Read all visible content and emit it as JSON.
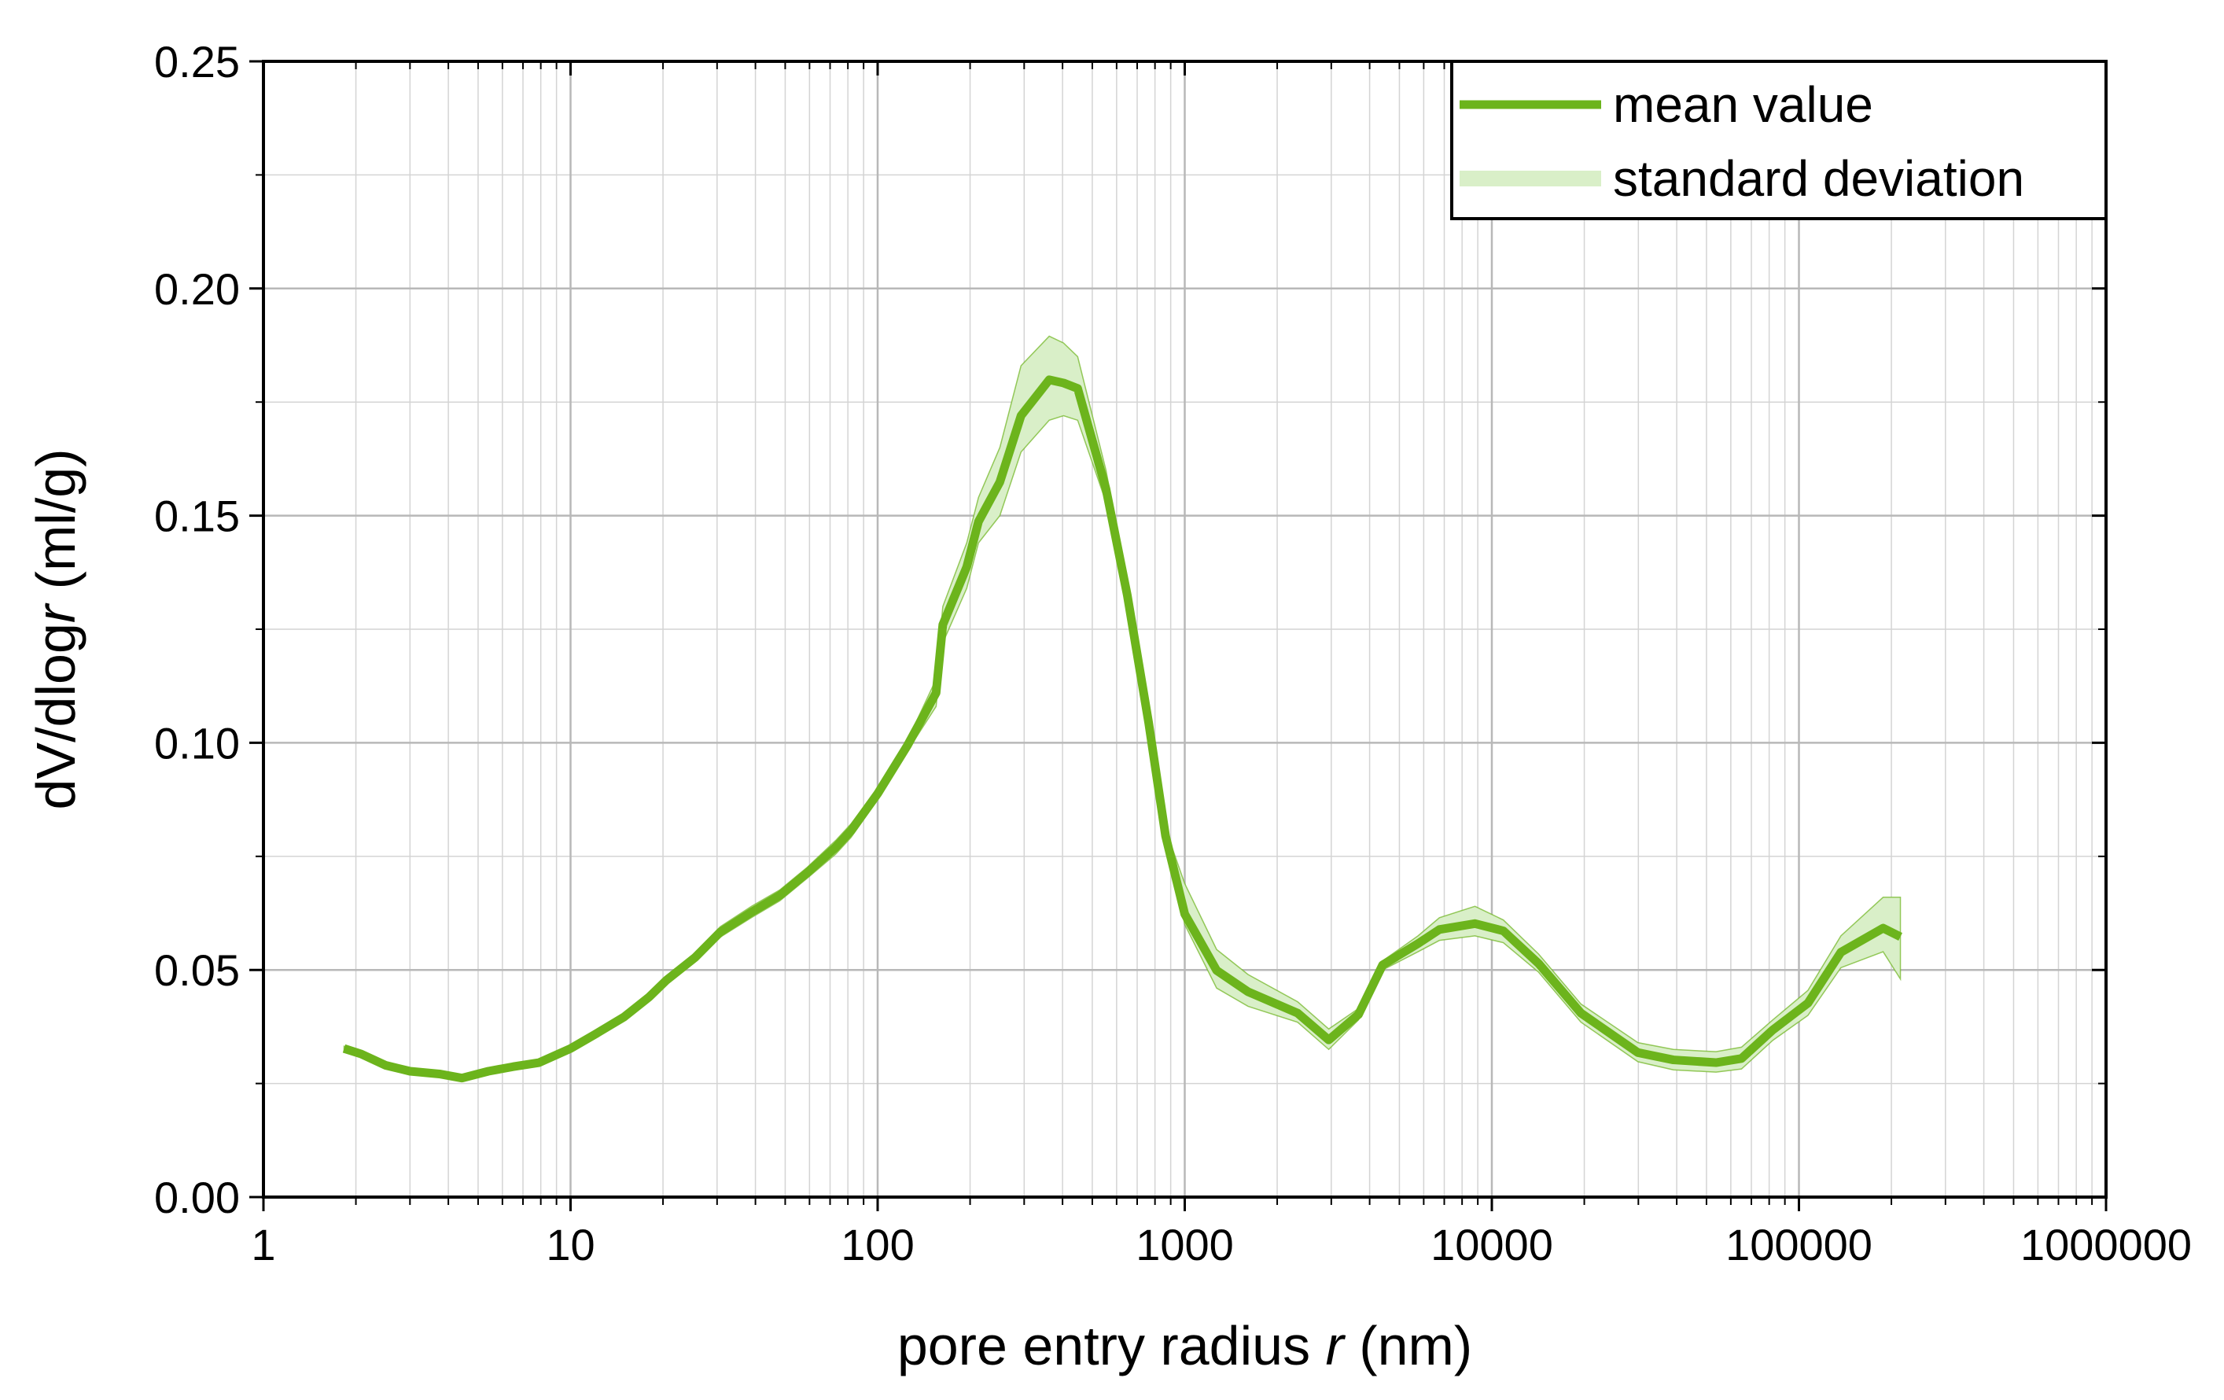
{
  "chart_data": {
    "type": "line",
    "xlabel": [
      "pore entry radius ",
      "r",
      " (nm)"
    ],
    "ylabel": [
      "dV/dlog",
      "r",
      " (ml/g)"
    ],
    "xscale": "log",
    "grid": true,
    "legend": "upper right",
    "xlim": [
      1,
      1000000
    ],
    "xticks": [
      1,
      10,
      100,
      1000,
      10000,
      100000,
      1000000
    ],
    "ylim": [
      0,
      0.25
    ],
    "yticks": [
      {
        "value": 0,
        "label": "0.00"
      },
      0.05,
      {
        "value": 0.1,
        "label": "0.10"
      },
      0.15,
      {
        "value": 0.2,
        "label": "0.20"
      },
      0.25
    ],
    "x": [
      1.83,
      2.08,
      2.5,
      3.0,
      3.74,
      4.43,
      5.4,
      6.5,
      7.9,
      10,
      12,
      14.9,
      18,
      20.5,
      25.4,
      30.7,
      38.8,
      48,
      59,
      73,
      82,
      100,
      125,
      155,
      163,
      195,
      213,
      250,
      293,
      362,
      403,
      448,
      554,
      650,
      763,
      866,
      1000,
      1270,
      1607,
      2330,
      2944,
      3680,
      4410,
      5750,
      6750,
      8810,
      10900,
      14200,
      19500,
      29900,
      39000,
      53700,
      65000,
      82200,
      107000,
      137000,
      188000,
      214000
    ],
    "series": [
      {
        "name": "mean value",
        "color": "#6cb41c",
        "values": [
          0.0327,
          0.0315,
          0.029,
          0.0277,
          0.0271,
          0.0262,
          0.0277,
          0.0287,
          0.0296,
          0.0327,
          0.0358,
          0.0396,
          0.044,
          0.0477,
          0.0527,
          0.0583,
          0.0627,
          0.0664,
          0.0714,
          0.077,
          0.0807,
          0.0888,
          0.0994,
          0.111,
          0.126,
          0.1387,
          0.1487,
          0.1574,
          0.172,
          0.1799,
          0.1792,
          0.178,
          0.1559,
          0.1325,
          0.1044,
          0.0795,
          0.0623,
          0.0499,
          0.0452,
          0.0405,
          0.0346,
          0.0402,
          0.0511,
          0.0558,
          0.0589,
          0.0602,
          0.0586,
          0.0514,
          0.0405,
          0.0318,
          0.0302,
          0.0296,
          0.0305,
          0.0368,
          0.0427,
          0.0539,
          0.0592,
          0.0573
        ]
      },
      {
        "name": "standard deviation",
        "color": "#d9efc8",
        "upper": [
          0.0332,
          0.032,
          0.0295,
          0.0282,
          0.0276,
          0.0267,
          0.0282,
          0.0292,
          0.0302,
          0.0335,
          0.0365,
          0.0402,
          0.0447,
          0.0485,
          0.0537,
          0.0595,
          0.064,
          0.0676,
          0.0726,
          0.0785,
          0.0822,
          0.09,
          0.1005,
          0.114,
          0.13,
          0.144,
          0.154,
          0.165,
          0.183,
          0.1895,
          0.188,
          0.185,
          0.16,
          0.135,
          0.106,
          0.081,
          0.069,
          0.0545,
          0.049,
          0.043,
          0.037,
          0.0415,
          0.052,
          0.0575,
          0.0615,
          0.064,
          0.061,
          0.0535,
          0.0425,
          0.034,
          0.0325,
          0.032,
          0.033,
          0.039,
          0.0455,
          0.0575,
          0.066,
          0.066
        ],
        "lower": [
          0.0322,
          0.031,
          0.0285,
          0.0272,
          0.0266,
          0.0257,
          0.0272,
          0.0282,
          0.029,
          0.032,
          0.0352,
          0.039,
          0.0433,
          0.047,
          0.0517,
          0.0572,
          0.0615,
          0.0652,
          0.0702,
          0.0755,
          0.0792,
          0.0875,
          0.0982,
          0.108,
          0.122,
          0.134,
          0.144,
          0.15,
          0.164,
          0.171,
          0.172,
          0.171,
          0.153,
          0.13,
          0.103,
          0.0785,
          0.06,
          0.046,
          0.042,
          0.0385,
          0.0325,
          0.039,
          0.05,
          0.054,
          0.0565,
          0.0575,
          0.056,
          0.0495,
          0.0385,
          0.0298,
          0.028,
          0.0275,
          0.0282,
          0.0345,
          0.04,
          0.0505,
          0.054,
          0.048
        ]
      }
    ]
  }
}
